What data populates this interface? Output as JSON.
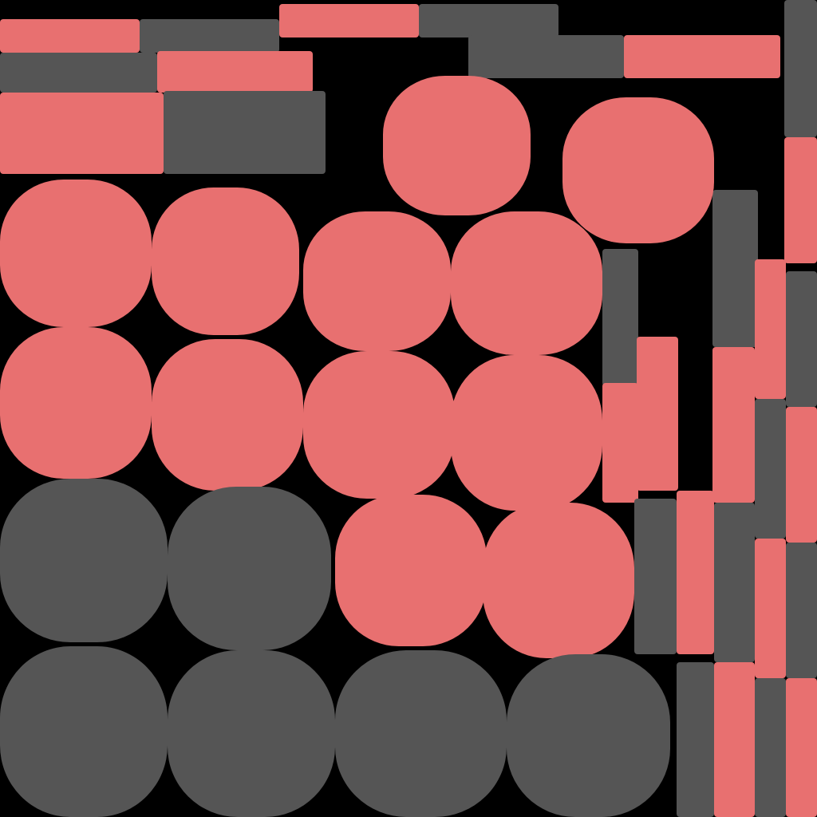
{
  "colors": {
    "background": "#000000",
    "red": "#E87070",
    "gray": "#555555"
  },
  "shapes": {
    "bars": [
      {
        "c": "red",
        "r": [
          0,
          24,
          175,
          42
        ]
      },
      {
        "c": "gray",
        "r": [
          175,
          24,
          175,
          42
        ]
      },
      {
        "c": "red",
        "r": [
          350,
          5,
          175,
          42
        ]
      },
      {
        "c": "gray",
        "r": [
          525,
          5,
          175,
          42
        ]
      },
      {
        "c": "gray",
        "r": [
          0,
          66,
          197,
          50
        ]
      },
      {
        "c": "red",
        "r": [
          197,
          64,
          195,
          52
        ]
      },
      {
        "c": "gray",
        "r": [
          587,
          44,
          195,
          54
        ]
      },
      {
        "c": "red",
        "r": [
          782,
          44,
          196,
          54
        ]
      },
      {
        "c": "red",
        "r": [
          0,
          116,
          205,
          102
        ]
      },
      {
        "c": "gray",
        "r": [
          205,
          114,
          203,
          104
        ]
      },
      {
        "c": "gray",
        "r": [
          983,
          0,
          41,
          172
        ]
      },
      {
        "c": "red",
        "r": [
          983,
          172,
          41,
          158
        ]
      },
      {
        "c": "gray",
        "r": [
          755,
          312,
          45,
          172
        ]
      },
      {
        "c": "red",
        "r": [
          755,
          480,
          45,
          150
        ]
      },
      {
        "c": "red",
        "r": [
          798,
          422,
          52,
          193
        ]
      },
      {
        "c": "gray",
        "r": [
          893,
          238,
          57,
          197
        ]
      },
      {
        "c": "red",
        "r": [
          893,
          435,
          53,
          195
        ]
      },
      {
        "c": "red",
        "r": [
          946,
          325,
          39,
          175
        ]
      },
      {
        "c": "gray",
        "r": [
          985,
          340,
          39,
          170
        ]
      },
      {
        "c": "red",
        "r": [
          985,
          510,
          39,
          170
        ]
      },
      {
        "c": "gray",
        "r": [
          985,
          680,
          39,
          170
        ]
      },
      {
        "c": "red",
        "r": [
          985,
          850,
          39,
          174
        ]
      },
      {
        "c": "gray",
        "r": [
          946,
          500,
          39,
          175
        ]
      },
      {
        "c": "red",
        "r": [
          946,
          675,
          39,
          175
        ]
      },
      {
        "c": "gray",
        "r": [
          946,
          850,
          39,
          174
        ]
      },
      {
        "c": "gray",
        "r": [
          795,
          625,
          53,
          195
        ]
      },
      {
        "c": "red",
        "r": [
          848,
          615,
          47,
          205
        ]
      },
      {
        "c": "gray",
        "r": [
          895,
          630,
          51,
          200
        ]
      },
      {
        "c": "red",
        "r": [
          895,
          830,
          51,
          194
        ]
      },
      {
        "c": "gray",
        "r": [
          848,
          830,
          47,
          194
        ]
      }
    ],
    "blobs": [
      {
        "c": "red",
        "r": [
          480,
          95,
          185,
          175
        ]
      },
      {
        "c": "red",
        "r": [
          705,
          122,
          190,
          183
        ]
      },
      {
        "c": "red",
        "r": [
          0,
          225,
          190,
          185
        ]
      },
      {
        "c": "red",
        "r": [
          190,
          235,
          185,
          185
        ]
      },
      {
        "c": "red",
        "r": [
          380,
          265,
          185,
          175
        ]
      },
      {
        "c": "red",
        "r": [
          565,
          265,
          190,
          180
        ]
      },
      {
        "c": "red",
        "r": [
          0,
          410,
          190,
          190
        ]
      },
      {
        "c": "red",
        "r": [
          190,
          425,
          190,
          190
        ]
      },
      {
        "c": "red",
        "r": [
          380,
          440,
          190,
          185
        ]
      },
      {
        "c": "red",
        "r": [
          565,
          445,
          190,
          195
        ]
      },
      {
        "c": "red",
        "r": [
          420,
          620,
          190,
          190
        ]
      },
      {
        "c": "red",
        "r": [
          605,
          630,
          190,
          195
        ]
      },
      {
        "c": "gray",
        "r": [
          0,
          600,
          210,
          205
        ]
      },
      {
        "c": "gray",
        "r": [
          210,
          610,
          205,
          205
        ]
      },
      {
        "c": "gray",
        "r": [
          0,
          810,
          210,
          214
        ]
      },
      {
        "c": "gray",
        "r": [
          210,
          815,
          210,
          209
        ]
      },
      {
        "c": "gray",
        "r": [
          420,
          815,
          215,
          209
        ]
      },
      {
        "c": "gray",
        "r": [
          635,
          820,
          205,
          204
        ]
      }
    ]
  }
}
